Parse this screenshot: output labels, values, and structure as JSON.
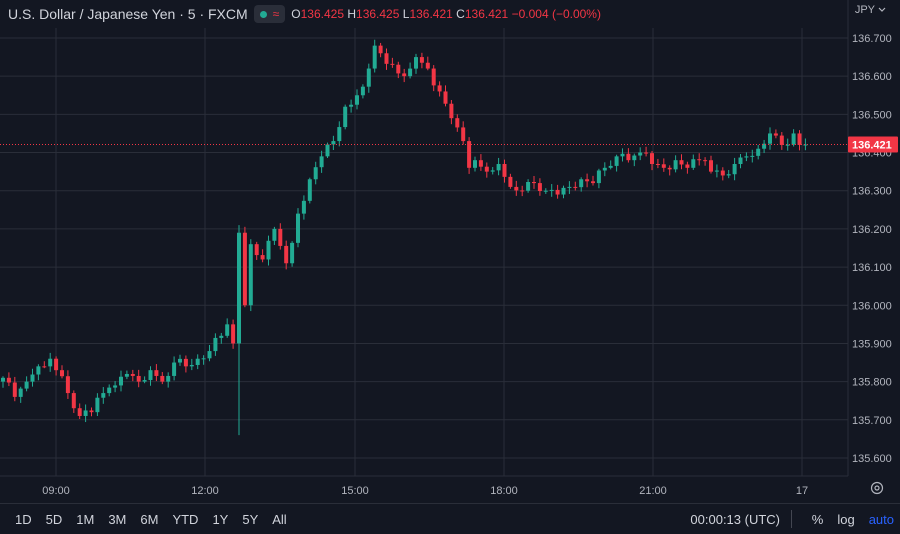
{
  "header": {
    "title": "U.S. Dollar / Japanese Yen · 5 · FXCM",
    "status_symbol": "≈",
    "ohlc": {
      "o_label": "O",
      "o_value": "136.425",
      "h_label": "H",
      "h_value": "136.425",
      "l_label": "L",
      "l_value": "136.421",
      "c_label": "C",
      "c_value": "136.421",
      "change": "−0.004 (−0.00%)"
    }
  },
  "currency": "JPY",
  "last_price_label": "136.421",
  "bottom": {
    "ranges": [
      "1D",
      "5D",
      "1M",
      "3M",
      "6M",
      "YTD",
      "1Y",
      "5Y",
      "All"
    ],
    "clock": "00:00:13 (UTC)",
    "percent": "%",
    "log": "log",
    "auto": "auto"
  },
  "colors": {
    "up": "#22ab94",
    "down": "#f23645",
    "bg": "#131722",
    "grid": "#2a2e39",
    "text": "#b2b5be"
  },
  "chart_data": {
    "type": "candlestick",
    "x_tick_labels": [
      "09:00",
      "12:00",
      "15:00",
      "18:00",
      "21:00",
      "17"
    ],
    "y_tick_labels": [
      "135.600",
      "135.700",
      "135.800",
      "135.900",
      "136.000",
      "136.100",
      "136.200",
      "136.300",
      "136.400",
      "136.500",
      "136.600",
      "136.700"
    ],
    "ylim": [
      135.55,
      136.73
    ],
    "last_price": 136.421,
    "grid": true,
    "close_path": [
      [
        0,
        135.81
      ],
      [
        2,
        135.76
      ],
      [
        4,
        135.8
      ],
      [
        6,
        135.84
      ],
      [
        8,
        135.86
      ],
      [
        9,
        135.83
      ],
      [
        11,
        135.77
      ],
      [
        13,
        135.71
      ],
      [
        15,
        135.72
      ],
      [
        17,
        135.77
      ],
      [
        19,
        135.79
      ],
      [
        21,
        135.82
      ],
      [
        23,
        135.8
      ],
      [
        25,
        135.83
      ],
      [
        27,
        135.8
      ],
      [
        29,
        135.85
      ],
      [
        31,
        135.84
      ],
      [
        33,
        135.86
      ],
      [
        35,
        135.88
      ],
      [
        37,
        135.92
      ],
      [
        38,
        135.95
      ],
      [
        39,
        135.9
      ],
      [
        40,
        136.19
      ],
      [
        41,
        136.0
      ],
      [
        42,
        136.16
      ],
      [
        44,
        136.12
      ],
      [
        46,
        136.2
      ],
      [
        48,
        136.11
      ],
      [
        50,
        136.24
      ],
      [
        52,
        136.33
      ],
      [
        54,
        136.39
      ],
      [
        56,
        136.43
      ],
      [
        58,
        136.52
      ],
      [
        60,
        136.55
      ],
      [
        62,
        136.62
      ],
      [
        63,
        136.68
      ],
      [
        64,
        136.66
      ],
      [
        66,
        136.63
      ],
      [
        68,
        136.6
      ],
      [
        70,
        136.65
      ],
      [
        72,
        136.62
      ],
      [
        74,
        136.56
      ],
      [
        76,
        136.49
      ],
      [
        78,
        136.43
      ],
      [
        79,
        136.36
      ],
      [
        80,
        136.38
      ],
      [
        82,
        136.35
      ],
      [
        84,
        136.37
      ],
      [
        86,
        136.31
      ],
      [
        88,
        136.3
      ],
      [
        90,
        136.32
      ],
      [
        92,
        136.3
      ],
      [
        94,
        136.29
      ],
      [
        96,
        136.31
      ],
      [
        98,
        136.33
      ],
      [
        100,
        136.32
      ],
      [
        102,
        136.36
      ],
      [
        104,
        136.39
      ],
      [
        106,
        136.38
      ],
      [
        108,
        136.4
      ],
      [
        110,
        136.37
      ],
      [
        112,
        136.36
      ],
      [
        114,
        136.38
      ],
      [
        116,
        136.36
      ],
      [
        118,
        136.38
      ],
      [
        120,
        136.35
      ],
      [
        122,
        136.34
      ],
      [
        124,
        136.37
      ],
      [
        126,
        136.39
      ],
      [
        128,
        136.41
      ],
      [
        130,
        136.45
      ],
      [
        132,
        136.42
      ],
      [
        134,
        136.45
      ],
      [
        135,
        136.42
      ],
      [
        136,
        136.421
      ]
    ],
    "spikes": [
      {
        "index": 40,
        "low": 135.66,
        "high": 136.21
      }
    ]
  }
}
